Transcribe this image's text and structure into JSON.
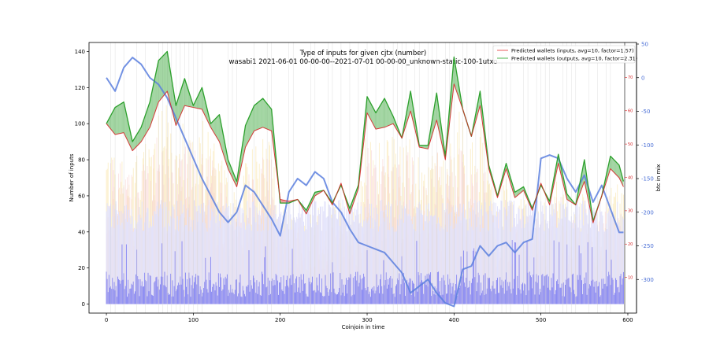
{
  "chart_data": {
    "type": "line",
    "title": "Type of inputs for given cjtx (number)",
    "subtitle": "wasabi1 2021-06-01 00-00-00--2021-07-01 00-00-00_unknown-static-100-1utxo",
    "xlabel": "Coinjoin in time",
    "ylabel": "Number of inputs",
    "y2label": "btc in mix",
    "xlim": [
      -20,
      610
    ],
    "ylim": [
      -5,
      145
    ],
    "y_right_inner_lim": [
      0,
      80
    ],
    "y_btc_lim": [
      -350,
      50
    ],
    "x_ticks": [
      0,
      100,
      200,
      300,
      400,
      500,
      600
    ],
    "y_ticks": [
      0,
      20,
      40,
      60,
      80,
      100,
      120,
      140
    ],
    "y_right_inner_ticks": [
      10,
      20,
      30,
      40,
      50,
      60,
      70
    ],
    "y_btc_ticks": [
      50,
      0,
      -50,
      -100,
      -150,
      -200,
      -250,
      -300
    ],
    "legend_position": "top-right",
    "colors": {
      "inputs": "#d62728",
      "outputs": "#2ca02c",
      "btc": "#5b7fde",
      "bars_blue": "#8c8cf2",
      "bars_light": "#e2e2fb",
      "bars_pink": "#f8cfcf",
      "bars_yellow": "#f8e3a6"
    },
    "series": [
      {
        "name": "Predicted wallets (inputs, avg=10, factor=1.57)",
        "axis": "left",
        "x": [
          0,
          10,
          20,
          30,
          40,
          50,
          60,
          70,
          80,
          90,
          100,
          110,
          120,
          130,
          140,
          150,
          160,
          170,
          180,
          190,
          200,
          210,
          220,
          230,
          240,
          250,
          260,
          270,
          280,
          290,
          300,
          310,
          320,
          330,
          340,
          350,
          360,
          370,
          380,
          390,
          400,
          410,
          420,
          430,
          440,
          450,
          460,
          470,
          480,
          490,
          500,
          510,
          520,
          530,
          540,
          550,
          560,
          570,
          580,
          590,
          595
        ],
        "y": [
          100,
          94,
          95,
          85,
          90,
          98,
          112,
          118,
          99,
          110,
          109,
          108,
          98,
          90,
          75,
          65,
          87,
          96,
          98,
          96,
          58,
          57,
          58,
          50,
          60,
          63,
          55,
          67,
          50,
          64,
          106,
          97,
          98,
          100,
          92,
          107,
          87,
          86,
          102,
          80,
          122,
          108,
          93,
          110,
          75,
          59,
          75,
          59,
          63,
          52,
          67,
          55,
          78,
          58,
          55,
          68,
          45,
          60,
          75,
          70,
          65
        ]
      },
      {
        "name": "Predicted wallets (outputs, avg=10, factor=2.31)",
        "axis": "left",
        "x": [
          0,
          10,
          20,
          30,
          40,
          50,
          60,
          70,
          80,
          90,
          100,
          110,
          120,
          130,
          140,
          150,
          160,
          170,
          180,
          190,
          200,
          210,
          220,
          230,
          240,
          250,
          260,
          270,
          280,
          290,
          300,
          310,
          320,
          330,
          340,
          350,
          360,
          370,
          380,
          390,
          400,
          410,
          420,
          430,
          440,
          450,
          460,
          470,
          480,
          490,
          500,
          510,
          520,
          530,
          540,
          550,
          560,
          570,
          580,
          590,
          595
        ],
        "y": [
          100,
          109,
          112,
          90,
          98,
          112,
          135,
          140,
          110,
          125,
          110,
          120,
          100,
          105,
          80,
          68,
          99,
          110,
          114,
          108,
          56,
          56,
          58,
          52,
          62,
          63,
          56,
          66,
          53,
          66,
          115,
          106,
          114,
          104,
          92,
          118,
          88,
          88,
          117,
          82,
          137,
          108,
          93,
          118,
          77,
          60,
          78,
          62,
          65,
          53,
          66,
          57,
          83,
          61,
          55,
          80,
          46,
          60,
          82,
          77,
          68
        ]
      },
      {
        "name": "",
        "axis": "btc",
        "x": [
          0,
          10,
          20,
          30,
          40,
          50,
          60,
          70,
          80,
          90,
          100,
          110,
          120,
          130,
          140,
          150,
          160,
          170,
          180,
          190,
          200,
          210,
          220,
          230,
          240,
          250,
          260,
          270,
          280,
          290,
          300,
          310,
          320,
          330,
          340,
          350,
          360,
          370,
          380,
          390,
          400,
          410,
          420,
          430,
          440,
          450,
          460,
          470,
          480,
          490,
          500,
          510,
          520,
          530,
          540,
          550,
          560,
          570,
          580,
          590,
          595
        ],
        "y": [
          0,
          -20,
          15,
          30,
          20,
          0,
          -10,
          -30,
          -60,
          -90,
          -120,
          -150,
          -175,
          -200,
          -215,
          -200,
          -160,
          -170,
          -190,
          -210,
          -235,
          -170,
          -150,
          -160,
          -140,
          -150,
          -185,
          -200,
          -225,
          -245,
          -250,
          -255,
          -260,
          -275,
          -290,
          -320,
          -310,
          -300,
          -320,
          -335,
          -340,
          -285,
          -280,
          -250,
          -265,
          -250,
          -245,
          -260,
          -245,
          -240,
          -120,
          -115,
          -120,
          -150,
          -170,
          -145,
          -185,
          -160,
          -195,
          -230,
          -230
        ]
      }
    ]
  },
  "legend": {
    "inputs_label": "Predicted wallets (inputs, avg=10, factor=1.57)",
    "outputs_label": "Predicted wallets (outputs, avg=10, factor=2.31)"
  }
}
